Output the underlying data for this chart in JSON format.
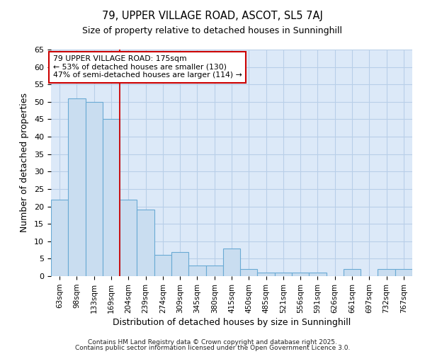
{
  "title1": "79, UPPER VILLAGE ROAD, ASCOT, SL5 7AJ",
  "title2": "Size of property relative to detached houses in Sunninghill",
  "xlabel": "Distribution of detached houses by size in Sunninghill",
  "ylabel": "Number of detached properties",
  "categories": [
    "63sqm",
    "98sqm",
    "133sqm",
    "169sqm",
    "204sqm",
    "239sqm",
    "274sqm",
    "309sqm",
    "345sqm",
    "380sqm",
    "415sqm",
    "450sqm",
    "485sqm",
    "521sqm",
    "556sqm",
    "591sqm",
    "626sqm",
    "661sqm",
    "697sqm",
    "732sqm",
    "767sqm"
  ],
  "values": [
    22,
    51,
    50,
    45,
    22,
    19,
    6,
    7,
    3,
    3,
    8,
    2,
    1,
    1,
    1,
    1,
    0,
    2,
    0,
    2,
    2
  ],
  "bar_color": "#c9ddf0",
  "bar_edge_color": "#6aaad4",
  "grid_color": "#b8cfe8",
  "plot_bg_color": "#dce9f8",
  "figure_bg_color": "#ffffff",
  "vline_x": 3.5,
  "vline_color": "#cc0000",
  "annotation_text": "79 UPPER VILLAGE ROAD: 175sqm\n← 53% of detached houses are smaller (130)\n47% of semi-detached houses are larger (114) →",
  "annotation_box_color": "white",
  "annotation_box_edge": "#cc0000",
  "ylim": [
    0,
    65
  ],
  "yticks": [
    0,
    5,
    10,
    15,
    20,
    25,
    30,
    35,
    40,
    45,
    50,
    55,
    60,
    65
  ],
  "footer_line1": "Contains HM Land Registry data © Crown copyright and database right 2025.",
  "footer_line2": "Contains public sector information licensed under the Open Government Licence 3.0."
}
